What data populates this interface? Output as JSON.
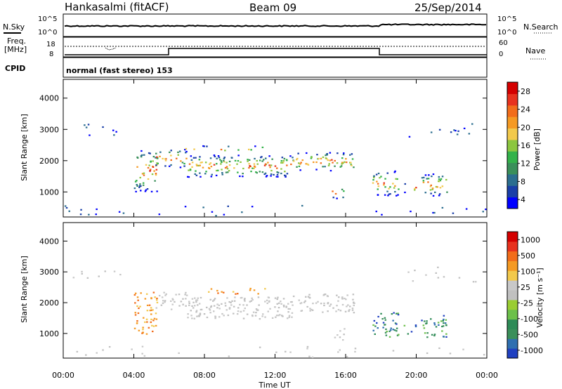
{
  "header": {
    "station": "Hankasalmi (fitACF)",
    "beam": "Beam 09",
    "date": "25/Sep/2014"
  },
  "noise_panel": {
    "left_label": "N.Sky",
    "right_label": "N.Search",
    "ticks_left": [
      "10^5",
      "10^0"
    ],
    "ticks_right": [
      "10^5",
      "10^0"
    ]
  },
  "freq_panel": {
    "left_label_line1": "Freq.",
    "left_label_line2": "[MHz]",
    "right_label": "Nave",
    "ticks_left": [
      "18",
      "8"
    ],
    "ticks_right": [
      "60",
      "0"
    ]
  },
  "cpid": {
    "label": "CPID",
    "text": "normal (fast stereo) 153"
  },
  "chart_data": [
    {
      "type": "heatmap",
      "name": "power-panel",
      "ylabel": "Slant Range [km]",
      "y_ticks": [
        "1000",
        "2000",
        "3000",
        "4000"
      ],
      "ylim": [
        200,
        4600
      ],
      "x_ticks": [
        "00:00",
        "04:00",
        "08:00",
        "12:00",
        "16:00",
        "20:00",
        "00:00"
      ],
      "xlim": [
        0,
        24
      ],
      "colorbar": {
        "label": "Power [dB]",
        "ticks": [
          "4",
          "8",
          "12",
          "16",
          "20",
          "24",
          "28"
        ],
        "colors": [
          "#0000ff",
          "#1a3fa8",
          "#2b6e8f",
          "#3a8f5a",
          "#33b24a",
          "#8cc63f",
          "#f2c94c",
          "#f59a23",
          "#f26d1b",
          "#e8321e",
          "#d40000"
        ]
      }
    },
    {
      "type": "heatmap",
      "name": "velocity-panel",
      "ylabel": "Slant Range [km]",
      "y_ticks": [
        "1000",
        "2000",
        "3000",
        "4000"
      ],
      "ylim": [
        200,
        4600
      ],
      "x_ticks": [
        "00:00",
        "04:00",
        "08:00",
        "12:00",
        "16:00",
        "20:00",
        "00:00"
      ],
      "xlim": [
        0,
        24
      ],
      "xlabel": "Time UT",
      "colorbar": {
        "label": "Velocity [m s⁻¹]",
        "ticks": [
          "1000",
          "500",
          "100",
          "25",
          "-25",
          "-100",
          "-500",
          "-1000"
        ],
        "colors": [
          "#2040c0",
          "#2f6fb0",
          "#3a8f5a",
          "#2e8b57",
          "#6cc04a",
          "#9acd32",
          "#c0c0c0",
          "#c8c8c8",
          "#f2c94c",
          "#f59a23",
          "#f26d1b",
          "#e8321e",
          "#d40000"
        ]
      }
    }
  ]
}
